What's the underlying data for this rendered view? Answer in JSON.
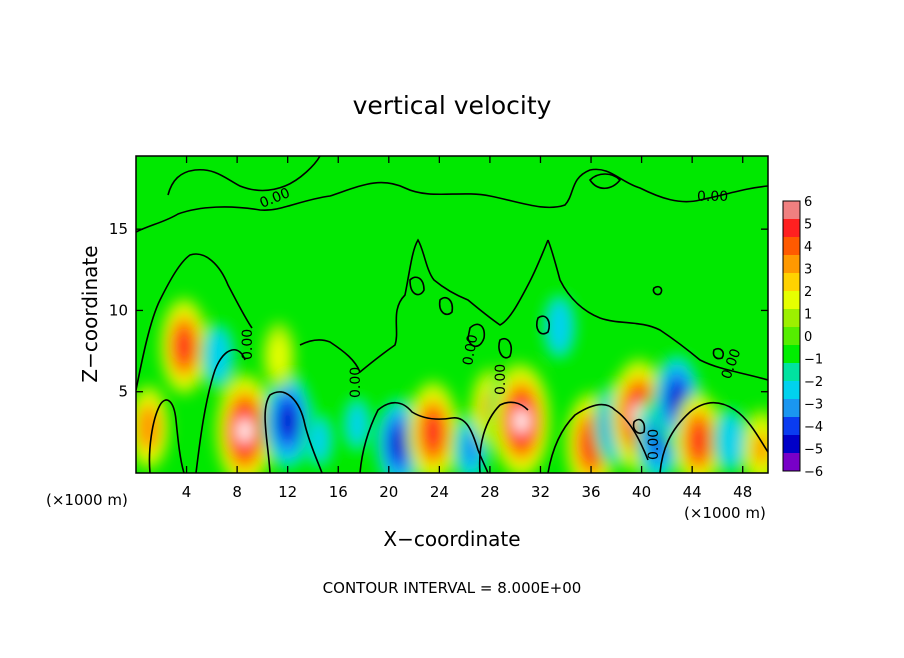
{
  "chart_data": {
    "type": "heatmap",
    "title": "vertical velocity",
    "xlabel": "X−coordinate",
    "ylabel": "Z−coordinate",
    "x_unit_left": "(×1000 m)",
    "x_unit_right": "(×1000 m)",
    "footer": "CONTOUR INTERVAL = 8.000E+00",
    "xlim": [
      0,
      50
    ],
    "ylim": [
      0,
      19.5
    ],
    "x_ticks": [
      4,
      8,
      12,
      16,
      20,
      24,
      28,
      32,
      36,
      40,
      44,
      48
    ],
    "y_ticks": [
      5,
      10,
      15
    ],
    "colorbar": {
      "range": [
        -6,
        6
      ],
      "tick_labels": [
        "6",
        "5",
        "4",
        "3",
        "2",
        "1",
        "0",
        "−1",
        "−2",
        "−3",
        "−4",
        "−5",
        "−6"
      ],
      "colors": [
        "#f08080",
        "#ff2020",
        "#ff5a00",
        "#ff9900",
        "#ffd200",
        "#e6ff00",
        "#9cf000",
        "#55ee00",
        "#00ee00",
        "#00e3a0",
        "#00d2ee",
        "#1a96f0",
        "#0a3cf0",
        "#0000c8",
        "#7800c8"
      ]
    },
    "contour_label": "0.00",
    "contour_labels_visible": [
      "0.00",
      "0.00",
      "0.00",
      "0.00",
      "0.00",
      "0.00",
      "0.00",
      "0.00"
    ],
    "features": [
      {
        "x": 1.0,
        "z": 2.8,
        "w": 3.5
      },
      {
        "x": 3.8,
        "z": 7.8,
        "w": 4.5
      },
      {
        "x": 8.6,
        "z": 2.6,
        "w": 6.0
      },
      {
        "x": 12.0,
        "z": 3.2,
        "w": -5.0
      },
      {
        "x": 6.5,
        "z": 7.2,
        "w": -2.5
      },
      {
        "x": 11.3,
        "z": 7.2,
        "w": 2.0
      },
      {
        "x": 14.5,
        "z": 2.0,
        "w": -2.0
      },
      {
        "x": 17.5,
        "z": 3.0,
        "w": -2.0
      },
      {
        "x": 20.8,
        "z": 1.8,
        "w": -4.5
      },
      {
        "x": 23.5,
        "z": 2.5,
        "w": 5.0
      },
      {
        "x": 26.5,
        "z": 1.5,
        "w": -3.0
      },
      {
        "x": 28.0,
        "z": 4.0,
        "w": 3.0
      },
      {
        "x": 30.0,
        "z": 3.5,
        "w": -5.5
      },
      {
        "x": 30.5,
        "z": 3.2,
        "w": 6.0
      },
      {
        "x": 33.5,
        "z": 9.0,
        "w": -2.5
      },
      {
        "x": 36.0,
        "z": 1.8,
        "w": 5.0
      },
      {
        "x": 38.0,
        "z": 3.0,
        "w": -4.0
      },
      {
        "x": 39.8,
        "z": 3.5,
        "w": 6.0
      },
      {
        "x": 41.3,
        "z": 2.0,
        "w": -4.0
      },
      {
        "x": 42.8,
        "z": 4.5,
        "w": -4.5
      },
      {
        "x": 44.5,
        "z": 2.0,
        "w": 4.5
      },
      {
        "x": 47.0,
        "z": 2.0,
        "w": -2.5
      },
      {
        "x": 49.5,
        "z": 1.5,
        "w": 3.0
      }
    ]
  }
}
